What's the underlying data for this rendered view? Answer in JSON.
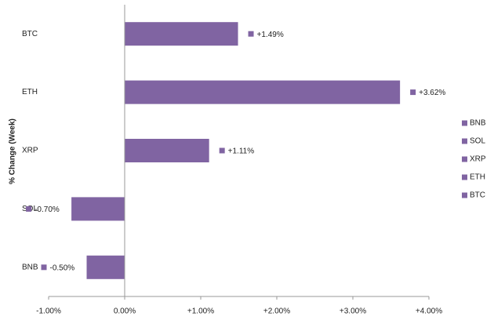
{
  "chart_data": {
    "type": "barh",
    "y_label": "% Change (Week)",
    "categories": [
      "BTC",
      "ETH",
      "XRP",
      "SOL",
      "BNB"
    ],
    "values": [
      1.49,
      3.62,
      1.11,
      -0.7,
      -0.5
    ],
    "value_labels": [
      "+1.49%",
      "+3.62%",
      "+1.11%",
      "-0.70%",
      "-0.50%"
    ],
    "color": "#8064a2",
    "xlim": [
      -1,
      4
    ],
    "xticks": [
      {
        "value": -1,
        "label": "-1.00%"
      },
      {
        "value": 0,
        "label": "0.00%"
      },
      {
        "value": 1,
        "label": "+1.00%"
      },
      {
        "value": 2,
        "label": "+2.00%"
      },
      {
        "value": 3,
        "label": "+3.00%"
      },
      {
        "value": 4,
        "label": "+4.00%"
      }
    ],
    "legend": "right"
  }
}
